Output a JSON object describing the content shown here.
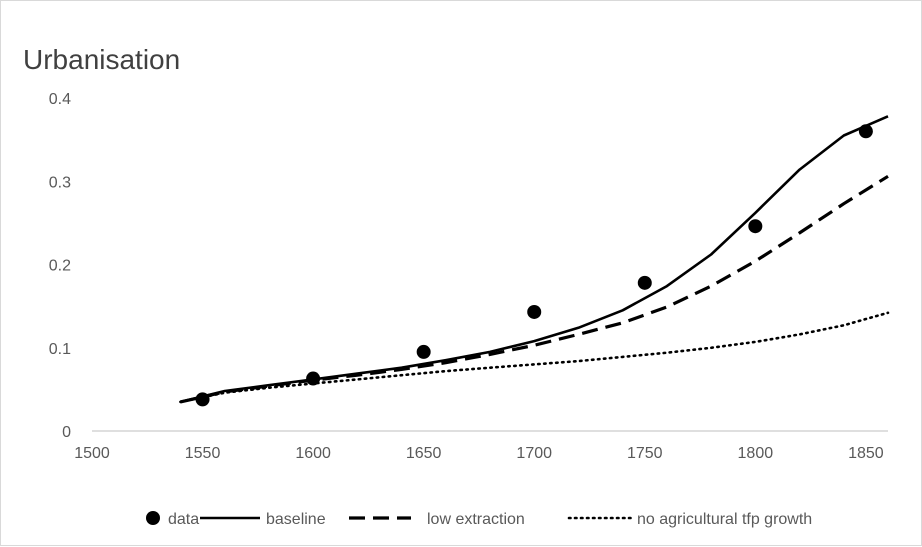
{
  "chart_data": {
    "type": "line",
    "title": "Urbanisation",
    "xlabel": "",
    "ylabel": "",
    "xlim": [
      1500,
      1860
    ],
    "ylim": [
      0,
      0.4
    ],
    "x_ticks": [
      "1500",
      "1550",
      "1600",
      "1650",
      "1700",
      "1750",
      "1800",
      "1850"
    ],
    "y_ticks": [
      "0",
      "0.1",
      "0.2",
      "0.3",
      "0.4"
    ],
    "grid": false,
    "legend_position": "bottom",
    "series": [
      {
        "name": "data",
        "style": "markers",
        "color": "#000000",
        "x": [
          1550,
          1600,
          1650,
          1700,
          1750,
          1800,
          1850
        ],
        "y": [
          0.038,
          0.063,
          0.095,
          0.143,
          0.178,
          0.246,
          0.36
        ]
      },
      {
        "name": "baseline",
        "style": "solid",
        "color": "#000000",
        "x": [
          1540,
          1560,
          1580,
          1600,
          1620,
          1640,
          1660,
          1680,
          1700,
          1720,
          1740,
          1760,
          1780,
          1800,
          1820,
          1840,
          1860
        ],
        "y": [
          0.035,
          0.048,
          0.055,
          0.062,
          0.069,
          0.076,
          0.085,
          0.095,
          0.108,
          0.124,
          0.145,
          0.174,
          0.212,
          0.262,
          0.314,
          0.355,
          0.378
        ]
      },
      {
        "name": "low extraction",
        "style": "dashed",
        "color": "#000000",
        "x": [
          1540,
          1560,
          1580,
          1600,
          1620,
          1640,
          1660,
          1680,
          1700,
          1720,
          1740,
          1760,
          1780,
          1800,
          1820,
          1840,
          1860
        ],
        "y": [
          0.035,
          0.047,
          0.054,
          0.061,
          0.067,
          0.074,
          0.082,
          0.092,
          0.103,
          0.116,
          0.13,
          0.149,
          0.174,
          0.204,
          0.238,
          0.273,
          0.306
        ]
      },
      {
        "name": "no agricultural tfp growth",
        "style": "dotted",
        "color": "#000000",
        "x": [
          1540,
          1560,
          1580,
          1600,
          1620,
          1640,
          1660,
          1680,
          1700,
          1720,
          1740,
          1760,
          1780,
          1800,
          1820,
          1840,
          1860
        ],
        "y": [
          0.035,
          0.046,
          0.052,
          0.057,
          0.062,
          0.067,
          0.072,
          0.076,
          0.08,
          0.084,
          0.089,
          0.094,
          0.1,
          0.107,
          0.116,
          0.127,
          0.142
        ]
      }
    ]
  }
}
